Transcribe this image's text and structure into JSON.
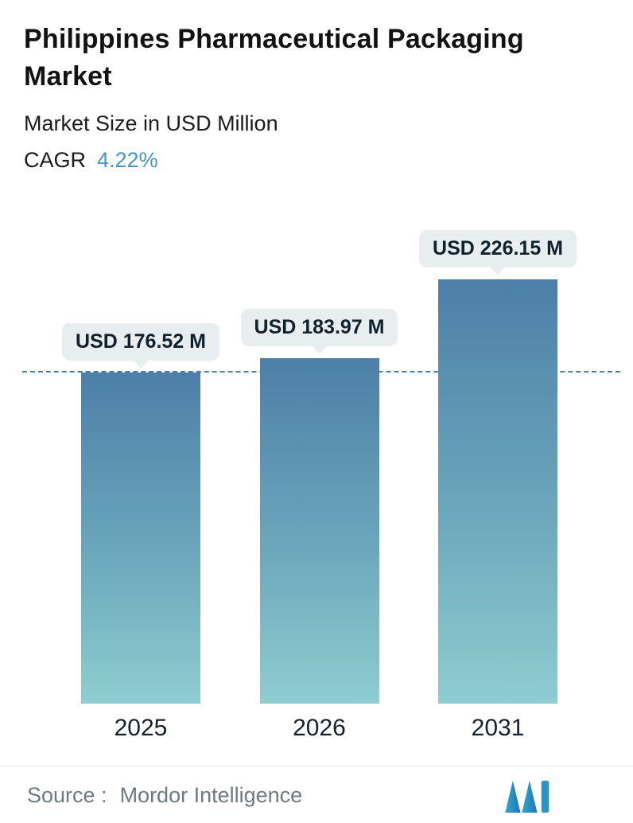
{
  "header": {
    "title": "Philippines Pharmaceutical Packaging Market",
    "subtitle": "Market Size in USD Million",
    "cagr_label": "CAGR",
    "cagr_value": "4.22%"
  },
  "footer": {
    "source_label": "Source :",
    "source_name": "Mordor Intelligence",
    "logo_icon": "mordor-intelligence-logo"
  },
  "colors": {
    "accent_blue": "#4596c5",
    "dashed_line": "#4a7fa9",
    "bar_gradient_top": "#4d7fa8",
    "bar_gradient_bottom": "#8ecdd0",
    "callout_background": "#e8edef",
    "text_dark": "#121212",
    "source_gray": "#6d7a82"
  },
  "chart_data": {
    "type": "bar",
    "title": "Philippines Pharmaceutical Packaging Market",
    "subtitle": "Market Size in USD Million",
    "cagr": "4.22%",
    "categories": [
      "2025",
      "2026",
      "2031"
    ],
    "values": [
      176.52,
      183.97,
      226.15
    ],
    "value_labels": [
      "USD 176.52 M",
      "USD 183.97 M",
      "USD 226.15 M"
    ],
    "xlabel": "",
    "ylabel": "Market Size in USD Million",
    "ylim": [
      0,
      226.15
    ],
    "grid": false,
    "legend": false,
    "reference_line": {
      "value": 176.52,
      "style": "dashed"
    }
  }
}
